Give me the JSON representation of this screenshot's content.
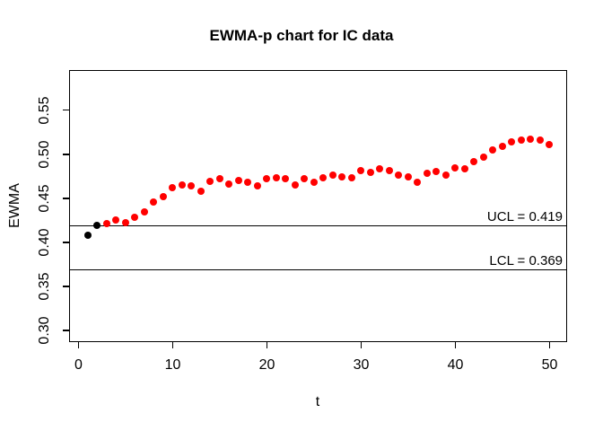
{
  "chart_data": {
    "type": "scatter",
    "title": "EWMA-p chart for IC data",
    "xlabel": "t",
    "ylabel": "EWMA",
    "xlim": [
      -1.0,
      51.86
    ],
    "ylim": [
      0.287,
      0.5955
    ],
    "x_ticks": [
      0,
      10,
      20,
      30,
      40,
      50
    ],
    "x_tick_labels": [
      "0",
      "10",
      "20",
      "30",
      "40",
      "50"
    ],
    "y_ticks": [
      0.3,
      0.35,
      0.4,
      0.45,
      0.5,
      0.55
    ],
    "y_tick_labels": [
      "0.30",
      "0.35",
      "0.40",
      "0.45",
      "0.50",
      "0.55"
    ],
    "grid": false,
    "legend_position": "none",
    "ucl": {
      "value": 0.419,
      "label": "UCL = 0.419"
    },
    "lcl": {
      "value": 0.369,
      "label": "LCL = 0.369"
    },
    "colors": {
      "point_default": "#ff0000",
      "point_start": "#000000",
      "line": "#000000"
    },
    "black_points": [
      1,
      2
    ],
    "x": [
      1,
      2,
      3,
      4,
      5,
      6,
      7,
      8,
      9,
      10,
      11,
      12,
      13,
      14,
      15,
      16,
      17,
      18,
      19,
      20,
      21,
      22,
      23,
      24,
      25,
      26,
      27,
      28,
      29,
      30,
      31,
      32,
      33,
      34,
      35,
      36,
      37,
      38,
      39,
      40,
      41,
      42,
      43,
      44,
      45,
      46,
      47,
      48,
      49,
      50
    ],
    "y": [
      0.408,
      0.419,
      0.421,
      0.425,
      0.422,
      0.429,
      0.435,
      0.446,
      0.452,
      0.462,
      0.465,
      0.464,
      0.458,
      0.469,
      0.472,
      0.466,
      0.47,
      0.468,
      0.464,
      0.472,
      0.473,
      0.472,
      0.465,
      0.472,
      0.468,
      0.473,
      0.476,
      0.474,
      0.473,
      0.481,
      0.479,
      0.483,
      0.481,
      0.476,
      0.474,
      0.468,
      0.478,
      0.48,
      0.476,
      0.485,
      0.483,
      0.492,
      0.497,
      0.505,
      0.509,
      0.514,
      0.516,
      0.517,
      0.516,
      0.511
    ]
  }
}
